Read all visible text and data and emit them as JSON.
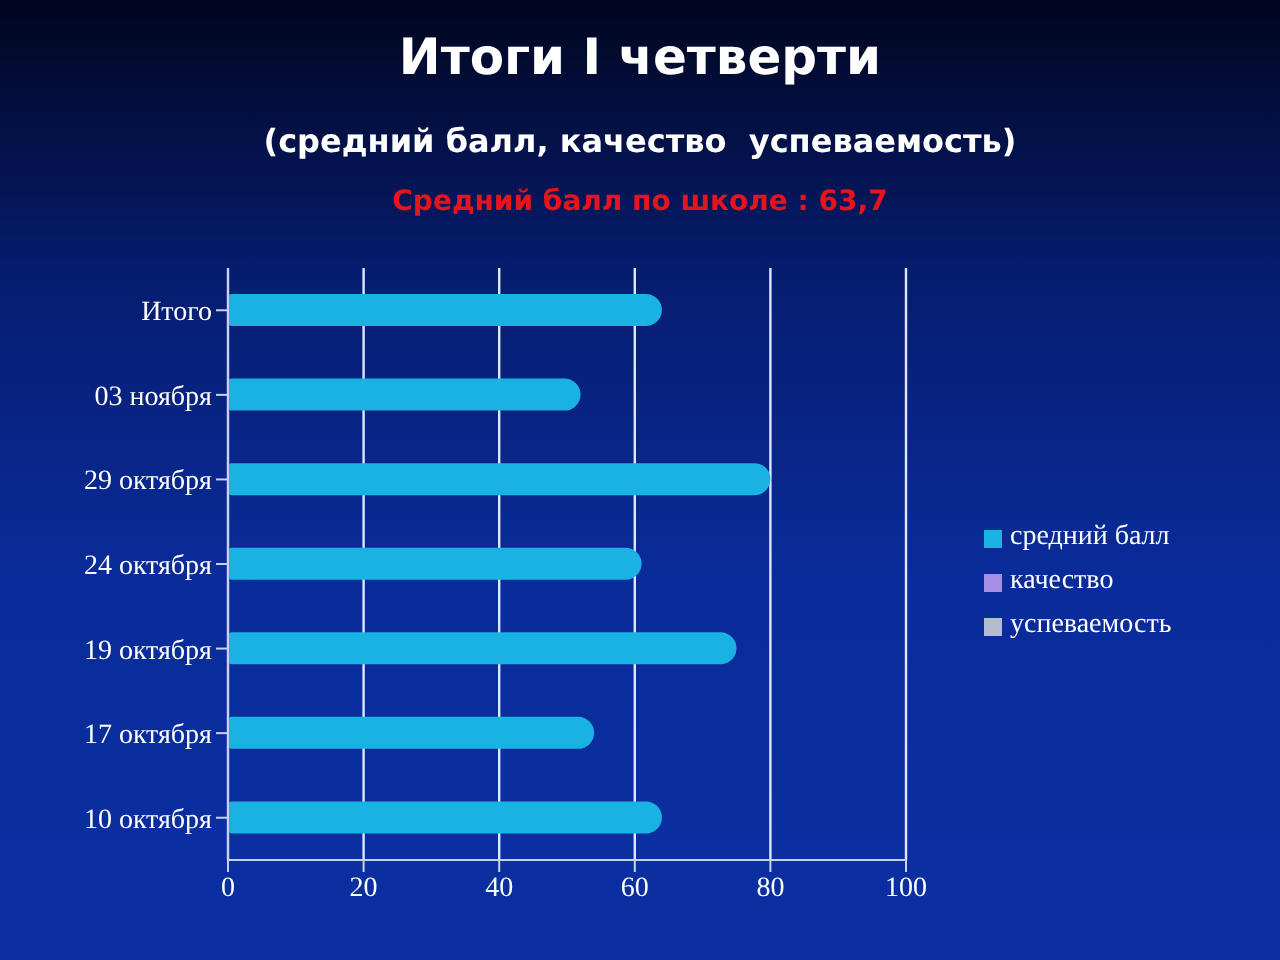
{
  "chart_data": {
    "type": "bar",
    "orientation": "horizontal",
    "title": "Итоги I четверти",
    "subtitle": "(средний балл, качество  успеваемость)",
    "annotations": [
      "Средний балл по школе : 63,7"
    ],
    "categories": [
      "Итого",
      "03 ноября",
      "29 октября",
      "24 октября",
      "19 октября",
      "17 октября",
      "10 октября"
    ],
    "series": [
      {
        "name": "средний балл",
        "color": "#1ab2e2",
        "values": [
          64,
          52,
          80,
          61,
          75,
          54,
          64
        ]
      },
      {
        "name": "качество",
        "color": "#a58ee6",
        "values": [
          null,
          null,
          null,
          null,
          null,
          null,
          null
        ]
      },
      {
        "name": "успеваемость",
        "color": "#b4bcd0",
        "values": [
          null,
          null,
          null,
          null,
          null,
          null,
          null
        ]
      }
    ],
    "xlim": [
      0,
      100
    ],
    "xticks": [
      0,
      20,
      40,
      60,
      80,
      100
    ],
    "grid": "x",
    "legend": "right"
  }
}
